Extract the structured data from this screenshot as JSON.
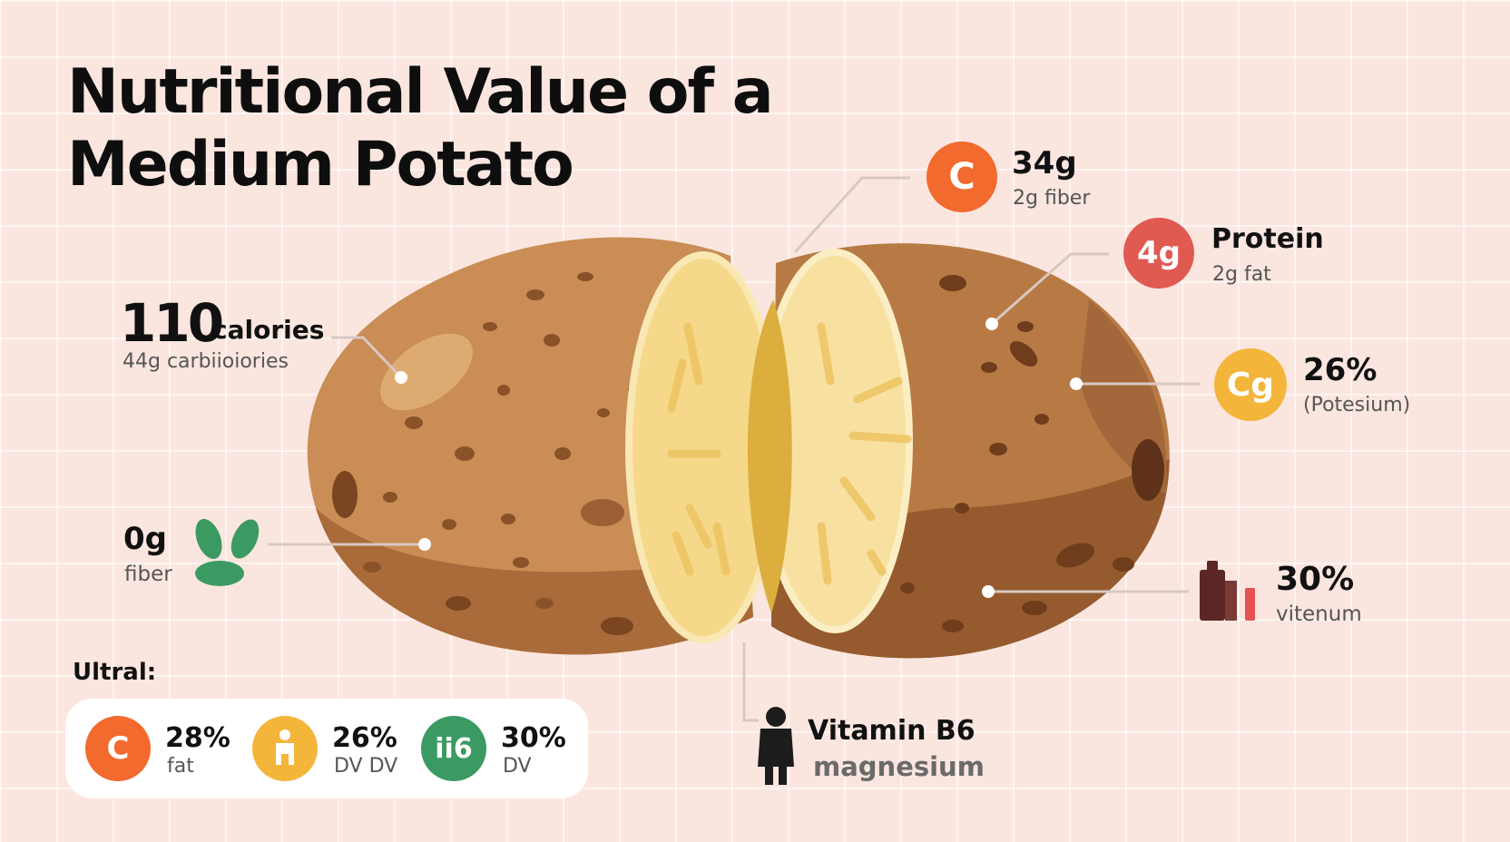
{
  "title": {
    "line1": "Nutritional Value of a",
    "line2": "Medium Potato"
  },
  "colors": {
    "background": "#fbe6df",
    "orange": "#f26a2e",
    "red": "#e05a52",
    "yellow": "#f3b53a",
    "green": "#3b9a62",
    "potato_skin": "#c98d55",
    "potato_flesh": "#f7dd8e"
  },
  "callouts": {
    "calories": {
      "value": "110",
      "unit": "calories",
      "sub": "44g carbiioiories"
    },
    "fiber": {
      "value": "0g",
      "sub": "fiber",
      "icon": "leaf-icon"
    },
    "carbs": {
      "badge": "C",
      "value": "34g",
      "sub": "2g fiber"
    },
    "protein": {
      "badge": "4g",
      "value": "Protein",
      "sub": "2g fat"
    },
    "potassium": {
      "badge": "Cg",
      "value": "26%",
      "sub": "(Potesium)"
    },
    "vitamin": {
      "value": "30%",
      "sub": "vitenum",
      "icon": "bar-chart-icon"
    },
    "b6": {
      "value": "Vitamin B6",
      "sub": "magnesium",
      "icon": "person-icon"
    }
  },
  "panel": {
    "heading": "Ultral:",
    "items": [
      {
        "badge": "C",
        "value": "28%",
        "label": "fat"
      },
      {
        "badge": "",
        "value": "26%",
        "label": "DV DV"
      },
      {
        "badge": "ii6",
        "value": "30%",
        "label": "DV"
      }
    ]
  }
}
